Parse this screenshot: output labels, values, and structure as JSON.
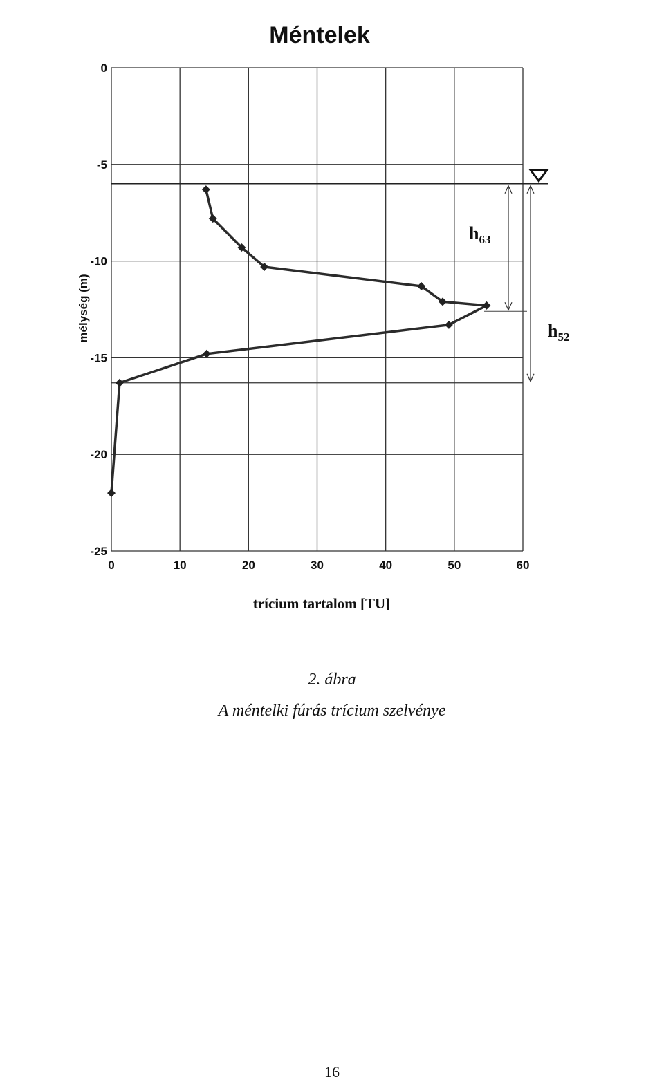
{
  "chart_data": {
    "type": "line",
    "title": "Méntelek",
    "xlabel": "trícium tartalom [TU]",
    "ylabel": "mélység (m)",
    "xlim": [
      0,
      60
    ],
    "ylim": [
      -25,
      0
    ],
    "xticks": [
      0,
      10,
      20,
      30,
      40,
      50,
      60
    ],
    "yticks": [
      0,
      -5,
      -10,
      -15,
      -20,
      -25
    ],
    "grid": true,
    "series": [
      {
        "x": [
          13.8,
          14.8,
          19,
          22.3,
          45.2,
          48.3,
          54.7,
          49.2,
          13.9,
          1.2,
          0
        ],
        "y": [
          -6.3,
          -7.8,
          -9.3,
          -10.3,
          -11.3,
          -12.1,
          -12.3,
          -13.3,
          -14.8,
          -16.3,
          -22.0
        ],
        "color": "#2b2b2b",
        "marker": "diamond"
      }
    ],
    "annotations": {
      "water_table_depth": -6.0,
      "h63_bottom_depth": -12.6,
      "h52_bottom_depth": -16.3,
      "h63": {
        "base": "h",
        "sub": "63"
      },
      "h52": {
        "base": "h",
        "sub": "52"
      }
    }
  },
  "caption": {
    "figure_label": "2. ábra",
    "text": "A méntelki fúrás trícium szelvénye"
  },
  "page_number": "16"
}
